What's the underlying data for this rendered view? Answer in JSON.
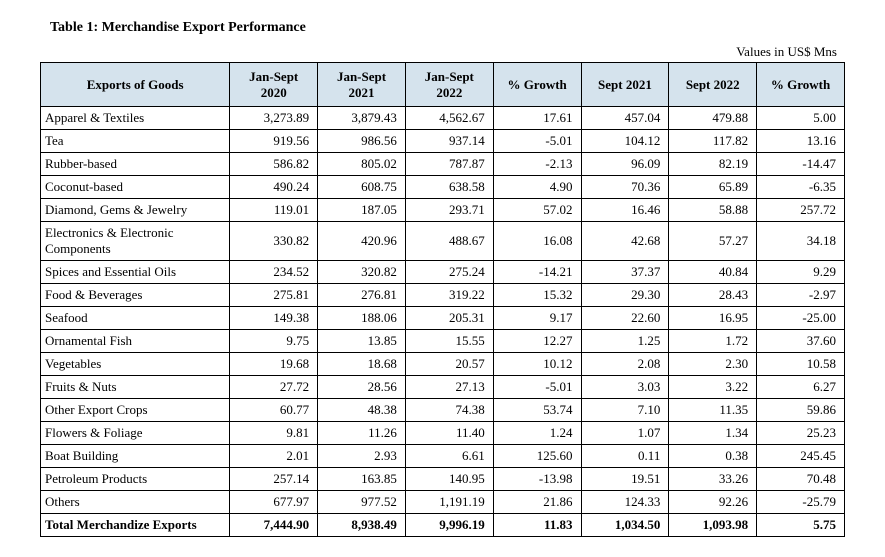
{
  "title": "Table 1: Merchandise Export Performance",
  "unit_label": "Values in US$ Mns",
  "columns": [
    "Exports of Goods",
    "Jan-Sept 2020",
    "Jan-Sept 2021",
    "Jan-Sept 2022",
    "% Growth",
    "Sept 2021",
    "Sept 2022",
    "% Growth"
  ],
  "rows": [
    {
      "label": "Apparel & Textiles",
      "js2020": "3,273.89",
      "js2021": "3,879.43",
      "js2022": "4,562.67",
      "g1": "17.61",
      "s2021": "457.04",
      "s2022": "479.88",
      "g2": "5.00"
    },
    {
      "label": "Tea",
      "js2020": "919.56",
      "js2021": "986.56",
      "js2022": "937.14",
      "g1": "-5.01",
      "s2021": "104.12",
      "s2022": "117.82",
      "g2": "13.16"
    },
    {
      "label": "Rubber-based",
      "js2020": "586.82",
      "js2021": "805.02",
      "js2022": "787.87",
      "g1": "-2.13",
      "s2021": "96.09",
      "s2022": "82.19",
      "g2": "-14.47"
    },
    {
      "label": "Coconut-based",
      "js2020": "490.24",
      "js2021": "608.75",
      "js2022": "638.58",
      "g1": "4.90",
      "s2021": "70.36",
      "s2022": "65.89",
      "g2": "-6.35"
    },
    {
      "label": "Diamond, Gems & Jewelry",
      "js2020": "119.01",
      "js2021": "187.05",
      "js2022": "293.71",
      "g1": "57.02",
      "s2021": "16.46",
      "s2022": "58.88",
      "g2": "257.72"
    },
    {
      "label": "Electronics & Electronic Components",
      "js2020": "330.82",
      "js2021": "420.96",
      "js2022": "488.67",
      "g1": "16.08",
      "s2021": "42.68",
      "s2022": "57.27",
      "g2": "34.18"
    },
    {
      "label": "Spices and Essential Oils",
      "js2020": "234.52",
      "js2021": "320.82",
      "js2022": "275.24",
      "g1": "-14.21",
      "s2021": "37.37",
      "s2022": "40.84",
      "g2": "9.29"
    },
    {
      "label": "Food & Beverages",
      "js2020": "275.81",
      "js2021": "276.81",
      "js2022": "319.22",
      "g1": "15.32",
      "s2021": "29.30",
      "s2022": "28.43",
      "g2": "-2.97"
    },
    {
      "label": "Seafood",
      "js2020": "149.38",
      "js2021": "188.06",
      "js2022": "205.31",
      "g1": "9.17",
      "s2021": "22.60",
      "s2022": "16.95",
      "g2": "-25.00"
    },
    {
      "label": "Ornamental Fish",
      "js2020": "9.75",
      "js2021": "13.85",
      "js2022": "15.55",
      "g1": "12.27",
      "s2021": "1.25",
      "s2022": "1.72",
      "g2": "37.60"
    },
    {
      "label": "Vegetables",
      "js2020": "19.68",
      "js2021": "18.68",
      "js2022": "20.57",
      "g1": "10.12",
      "s2021": "2.08",
      "s2022": "2.30",
      "g2": "10.58"
    },
    {
      "label": "Fruits & Nuts",
      "js2020": "27.72",
      "js2021": "28.56",
      "js2022": "27.13",
      "g1": "-5.01",
      "s2021": "3.03",
      "s2022": "3.22",
      "g2": "6.27"
    },
    {
      "label": "Other Export Crops",
      "js2020": "60.77",
      "js2021": "48.38",
      "js2022": "74.38",
      "g1": "53.74",
      "s2021": "7.10",
      "s2022": "11.35",
      "g2": "59.86"
    },
    {
      "label": "Flowers & Foliage",
      "js2020": "9.81",
      "js2021": "11.26",
      "js2022": "11.40",
      "g1": "1.24",
      "s2021": "1.07",
      "s2022": "1.34",
      "g2": "25.23"
    },
    {
      "label": "Boat Building",
      "js2020": "2.01",
      "js2021": "2.93",
      "js2022": "6.61",
      "g1": "125.60",
      "s2021": "0.11",
      "s2022": "0.38",
      "g2": "245.45"
    },
    {
      "label": "Petroleum Products",
      "js2020": "257.14",
      "js2021": "163.85",
      "js2022": "140.95",
      "g1": "-13.98",
      "s2021": "19.51",
      "s2022": "33.26",
      "g2": "70.48"
    },
    {
      "label": "Others",
      "js2020": "677.97",
      "js2021": "977.52",
      "js2022": "1,191.19",
      "g1": "21.86",
      "s2021": "124.33",
      "s2022": "92.26",
      "g2": "-25.79"
    }
  ],
  "total": {
    "label": "Total Merchandize Exports",
    "js2020": "7,444.90",
    "js2021": "8,938.49",
    "js2022": "9,996.19",
    "g1": "11.83",
    "s2021": "1,034.50",
    "s2022": "1,093.98",
    "g2": "5.75"
  }
}
